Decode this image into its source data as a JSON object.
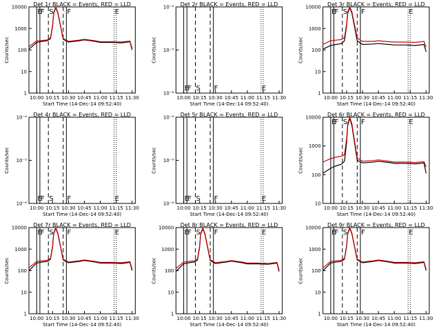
{
  "colors": {
    "events": "#000000",
    "lld": "#cc0000",
    "axes": "#000000",
    "background": "#ffffff"
  },
  "time_ticks": [
    "10:00",
    "10:15",
    "10:30",
    "10:45",
    "11:00",
    "11:15",
    "11:30"
  ],
  "xlabel": "Start Time (14-Dec-14 09:52:40)",
  "ylabel": "Counts/sec",
  "chart_data": [
    {
      "type": "line",
      "panel": 1,
      "title": "Det 1r BLACK = Events, RED = LLD",
      "yscale": "log",
      "ylim": [
        1,
        12000
      ],
      "y_ticks": [
        "1",
        "10",
        "100",
        "1000",
        "10000"
      ],
      "x": [
        "09:52:40",
        "10:00",
        "10:05",
        "10:10",
        "10:13",
        "10:15",
        "10:16",
        "10:18",
        "10:20",
        "10:25",
        "10:30",
        "10:40",
        "10:45",
        "10:55",
        "11:00",
        "11:10",
        "11:20",
        "11:28",
        "11:30"
      ],
      "series": [
        {
          "name": "Events",
          "values": [
            120,
            250,
            280,
            300,
            380,
            1500,
            6000,
            11000,
            6000,
            350,
            260,
            300,
            330,
            280,
            250,
            250,
            240,
            270,
            110
          ]
        },
        {
          "name": "LLD",
          "values": [
            160,
            290,
            310,
            330,
            420,
            1700,
            6600,
            12000,
            6600,
            380,
            280,
            320,
            350,
            300,
            270,
            270,
            260,
            290,
            130
          ]
        }
      ],
      "markers": [
        {
          "time": "10:00",
          "style": "solid",
          "label": "E"
        },
        {
          "time": "10:03",
          "style": "solid",
          "label": "F"
        },
        {
          "time": "10:11",
          "style": "dashed",
          "label": "S"
        },
        {
          "time": "10:25",
          "style": "dashed",
          "label": ""
        },
        {
          "time": "10:28",
          "style": "solid",
          "label": "F"
        },
        {
          "time": "11:13",
          "style": "dotted",
          "label": "E"
        },
        {
          "time": "11:15",
          "style": "dotted",
          "label": ""
        }
      ]
    },
    {
      "type": "line",
      "panel": 2,
      "title": "Det 2r BLACK = Events, RED = LLD",
      "yscale": "log",
      "ylim": [
        1e-06,
        0.0001
      ],
      "y_ticks": [
        "10⁻⁶",
        "10⁻⁵",
        "10⁻⁴"
      ],
      "x": [],
      "series": [],
      "markers": [
        {
          "time": "10:00",
          "style": "solid",
          "label": "E"
        },
        {
          "time": "10:03",
          "style": "solid",
          "label": "F"
        },
        {
          "time": "10:11",
          "style": "dashed",
          "label": "S"
        },
        {
          "time": "10:25",
          "style": "dashed",
          "label": ""
        },
        {
          "time": "10:28",
          "style": "solid",
          "label": "F"
        },
        {
          "time": "11:13",
          "style": "dotted",
          "label": "E"
        },
        {
          "time": "11:15",
          "style": "dotted",
          "label": ""
        }
      ]
    },
    {
      "type": "line",
      "panel": 3,
      "title": "Det 3r BLACK = Events, RED = LLD",
      "yscale": "log",
      "ylim": [
        1,
        12000
      ],
      "y_ticks": [
        "1",
        "10",
        "100",
        "1000",
        "10000"
      ],
      "x": [
        "09:52:40",
        "10:00",
        "10:05",
        "10:10",
        "10:13",
        "10:15",
        "10:16",
        "10:18",
        "10:20",
        "10:25",
        "10:30",
        "10:40",
        "10:45",
        "10:55",
        "11:00",
        "11:10",
        "11:20",
        "11:28",
        "11:30"
      ],
      "series": [
        {
          "name": "Events",
          "values": [
            120,
            180,
            200,
            220,
            300,
            1500,
            6000,
            11000,
            6000,
            300,
            200,
            210,
            220,
            200,
            190,
            190,
            180,
            200,
            90
          ]
        },
        {
          "name": "LLD",
          "values": [
            200,
            300,
            320,
            340,
            420,
            1800,
            7000,
            12000,
            7000,
            400,
            280,
            280,
            300,
            270,
            260,
            260,
            250,
            280,
            150
          ]
        }
      ],
      "markers": [
        {
          "time": "10:00",
          "style": "solid",
          "label": "E"
        },
        {
          "time": "10:03",
          "style": "solid",
          "label": "F"
        },
        {
          "time": "10:11",
          "style": "dashed",
          "label": "S"
        },
        {
          "time": "10:25",
          "style": "dashed",
          "label": ""
        },
        {
          "time": "10:28",
          "style": "solid",
          "label": "F"
        },
        {
          "time": "11:13",
          "style": "dotted",
          "label": "E"
        },
        {
          "time": "11:15",
          "style": "dotted",
          "label": ""
        }
      ]
    },
    {
      "type": "line",
      "panel": 4,
      "title": "Det 4r BLACK = Events, RED = LLD",
      "yscale": "log",
      "ylim": [
        1e-06,
        0.0001
      ],
      "y_ticks": [
        "10⁻⁶",
        "10⁻⁵",
        "10⁻⁴"
      ],
      "x": [],
      "series": [],
      "markers": [
        {
          "time": "10:00",
          "style": "solid",
          "label": "E"
        },
        {
          "time": "10:03",
          "style": "solid",
          "label": "F"
        },
        {
          "time": "10:11",
          "style": "dashed",
          "label": "S"
        },
        {
          "time": "10:25",
          "style": "dashed",
          "label": ""
        },
        {
          "time": "10:28",
          "style": "solid",
          "label": "F"
        },
        {
          "time": "11:13",
          "style": "dotted",
          "label": "E"
        },
        {
          "time": "11:15",
          "style": "dotted",
          "label": ""
        }
      ]
    },
    {
      "type": "line",
      "panel": 5,
      "title": "Det 5r BLACK = Events, RED = LLD",
      "yscale": "log",
      "ylim": [
        1e-06,
        0.0001
      ],
      "y_ticks": [
        "10⁻⁶",
        "10⁻⁵",
        "10⁻⁴"
      ],
      "x": [],
      "series": [],
      "markers": [
        {
          "time": "10:00",
          "style": "solid",
          "label": "E"
        },
        {
          "time": "10:03",
          "style": "solid",
          "label": "F"
        },
        {
          "time": "10:11",
          "style": "dashed",
          "label": "S"
        },
        {
          "time": "10:25",
          "style": "dashed",
          "label": ""
        },
        {
          "time": "10:28",
          "style": "solid",
          "label": "F"
        },
        {
          "time": "11:13",
          "style": "dotted",
          "label": "E"
        },
        {
          "time": "11:15",
          "style": "dotted",
          "label": ""
        }
      ]
    },
    {
      "type": "line",
      "panel": 6,
      "title": "Det 6r BLACK = Events, RED = LLD",
      "yscale": "log",
      "ylim": [
        10,
        12000
      ],
      "y_ticks": [
        "10",
        "100",
        "1000",
        "10000"
      ],
      "x": [
        "09:52:40",
        "10:00",
        "10:05",
        "10:10",
        "10:13",
        "10:15",
        "10:16",
        "10:18",
        "10:20",
        "10:25",
        "10:30",
        "10:40",
        "10:45",
        "10:55",
        "11:00",
        "11:10",
        "11:20",
        "11:28",
        "11:30"
      ],
      "series": [
        {
          "name": "Events",
          "values": [
            120,
            180,
            220,
            250,
            320,
            1500,
            6000,
            11000,
            6000,
            350,
            280,
            300,
            320,
            290,
            270,
            270,
            260,
            280,
            120
          ]
        },
        {
          "name": "LLD",
          "values": [
            300,
            400,
            450,
            480,
            550,
            2000,
            7000,
            12000,
            7000,
            420,
            320,
            340,
            360,
            320,
            300,
            300,
            290,
            310,
            200
          ]
        }
      ],
      "markers": [
        {
          "time": "10:00",
          "style": "solid",
          "label": "E"
        },
        {
          "time": "10:03",
          "style": "solid",
          "label": "F"
        },
        {
          "time": "10:11",
          "style": "dashed",
          "label": "S"
        },
        {
          "time": "10:25",
          "style": "dashed",
          "label": ""
        },
        {
          "time": "10:28",
          "style": "solid",
          "label": "F"
        },
        {
          "time": "11:13",
          "style": "dotted",
          "label": "E"
        },
        {
          "time": "11:15",
          "style": "dotted",
          "label": ""
        }
      ]
    },
    {
      "type": "line",
      "panel": 7,
      "title": "Det 7r BLACK = Events, RED = LLD",
      "yscale": "log",
      "ylim": [
        1,
        12000
      ],
      "y_ticks": [
        "1",
        "10",
        "100",
        "1000",
        "10000"
      ],
      "x": [
        "09:52:40",
        "10:00",
        "10:05",
        "10:10",
        "10:13",
        "10:15",
        "10:16",
        "10:18",
        "10:20",
        "10:25",
        "10:30",
        "10:40",
        "10:45",
        "10:55",
        "11:00",
        "11:10",
        "11:20",
        "11:28",
        "11:30"
      ],
      "series": [
        {
          "name": "Events",
          "values": [
            110,
            250,
            280,
            300,
            380,
            1500,
            6000,
            11000,
            6000,
            350,
            260,
            300,
            330,
            280,
            250,
            250,
            240,
            270,
            110
          ]
        },
        {
          "name": "LLD",
          "values": [
            150,
            300,
            320,
            340,
            420,
            1700,
            6600,
            12000,
            6600,
            380,
            280,
            320,
            350,
            300,
            270,
            270,
            260,
            290,
            130
          ]
        }
      ],
      "markers": [
        {
          "time": "10:00",
          "style": "solid",
          "label": "E"
        },
        {
          "time": "10:03",
          "style": "solid",
          "label": "F"
        },
        {
          "time": "10:11",
          "style": "dashed",
          "label": "S"
        },
        {
          "time": "10:25",
          "style": "dashed",
          "label": ""
        },
        {
          "time": "10:28",
          "style": "solid",
          "label": "F"
        },
        {
          "time": "11:13",
          "style": "dotted",
          "label": "E"
        },
        {
          "time": "11:15",
          "style": "dotted",
          "label": ""
        }
      ]
    },
    {
      "type": "line",
      "panel": 8,
      "title": "Det 8r BLACK = Events, RED = LLD",
      "yscale": "log",
      "ylim": [
        1,
        12000
      ],
      "y_ticks": [
        "1",
        "10",
        "100",
        "1000",
        "10000"
      ],
      "x": [
        "09:52:40",
        "10:00",
        "10:05",
        "10:10",
        "10:13",
        "10:15",
        "10:16",
        "10:18",
        "10:20",
        "10:25",
        "10:30",
        "10:40",
        "10:45",
        "10:55",
        "11:00",
        "11:10",
        "11:20",
        "11:28",
        "11:30"
      ],
      "series": [
        {
          "name": "Events",
          "values": [
            100,
            230,
            260,
            280,
            350,
            1400,
            5800,
            10500,
            5800,
            330,
            240,
            280,
            310,
            260,
            230,
            230,
            220,
            250,
            100
          ]
        },
        {
          "name": "LLD",
          "values": [
            140,
            280,
            300,
            320,
            400,
            1600,
            6400,
            11500,
            6400,
            360,
            260,
            300,
            330,
            280,
            250,
            250,
            240,
            270,
            120
          ]
        }
      ],
      "markers": [
        {
          "time": "10:00",
          "style": "solid",
          "label": "E"
        },
        {
          "time": "10:03",
          "style": "solid",
          "label": "F"
        },
        {
          "time": "10:11",
          "style": "dashed",
          "label": "S"
        },
        {
          "time": "10:25",
          "style": "dashed",
          "label": ""
        },
        {
          "time": "10:28",
          "style": "solid",
          "label": "F"
        },
        {
          "time": "11:13",
          "style": "dotted",
          "label": "E"
        },
        {
          "time": "11:15",
          "style": "dotted",
          "label": ""
        }
      ]
    },
    {
      "type": "line",
      "panel": 9,
      "title": "Det 9r BLACK = Events, RED = LLD",
      "yscale": "log",
      "ylim": [
        1,
        12000
      ],
      "y_ticks": [
        "1",
        "10",
        "100",
        "1000",
        "10000"
      ],
      "x": [
        "09:52:40",
        "10:00",
        "10:05",
        "10:10",
        "10:13",
        "10:15",
        "10:16",
        "10:18",
        "10:20",
        "10:25",
        "10:30",
        "10:40",
        "10:45",
        "10:55",
        "11:00",
        "11:10",
        "11:20",
        "11:28",
        "11:30"
      ],
      "series": [
        {
          "name": "Events",
          "values": [
            110,
            250,
            280,
            300,
            380,
            1500,
            6000,
            11000,
            6000,
            350,
            260,
            300,
            330,
            280,
            250,
            250,
            240,
            270,
            110
          ]
        },
        {
          "name": "LLD",
          "values": [
            150,
            300,
            320,
            340,
            420,
            1700,
            6600,
            12000,
            6600,
            380,
            280,
            320,
            350,
            300,
            270,
            270,
            260,
            290,
            130
          ]
        }
      ],
      "markers": [
        {
          "time": "10:00",
          "style": "solid",
          "label": "E"
        },
        {
          "time": "10:03",
          "style": "solid",
          "label": "F"
        },
        {
          "time": "10:11",
          "style": "dashed",
          "label": "S"
        },
        {
          "time": "10:25",
          "style": "dashed",
          "label": ""
        },
        {
          "time": "10:28",
          "style": "solid",
          "label": "F"
        },
        {
          "time": "11:13",
          "style": "dotted",
          "label": "E"
        },
        {
          "time": "11:15",
          "style": "dotted",
          "label": ""
        }
      ]
    }
  ]
}
